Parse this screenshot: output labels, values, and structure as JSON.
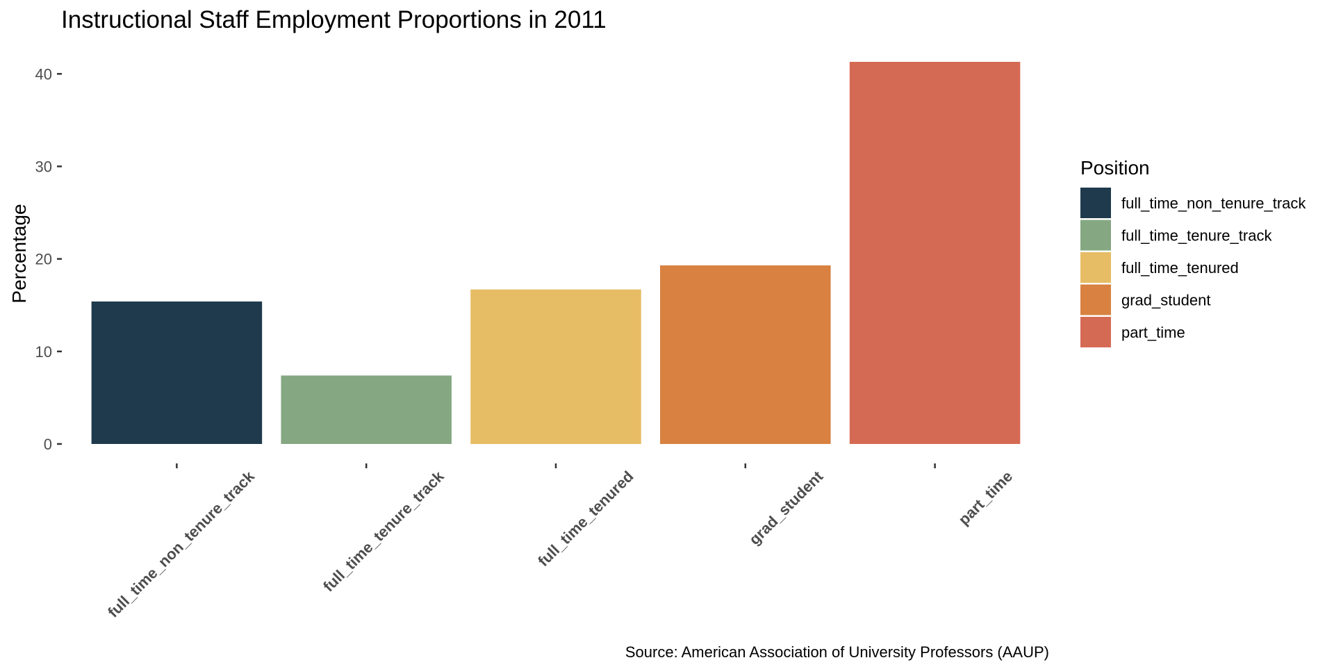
{
  "chart_data": {
    "type": "bar",
    "title": "Instructional Staff Employment Proportions in 2011",
    "xlabel": "",
    "ylabel": "Percentage",
    "categories": [
      "full_time_non_tenure_track",
      "full_time_tenure_track",
      "full_time_tenured",
      "grad_student",
      "part_time"
    ],
    "values": [
      15.4,
      7.4,
      16.7,
      19.3,
      41.3
    ],
    "colors": [
      "#1f3a4d",
      "#85a883",
      "#e6bc65",
      "#d88141",
      "#d56a54"
    ],
    "ylim": [
      0,
      41.3
    ],
    "yticks": [
      0,
      10,
      20,
      30,
      40
    ],
    "grid": false,
    "legend": {
      "title": "Position",
      "placement": "right",
      "entries": [
        "full_time_non_tenure_track",
        "full_time_tenure_track",
        "full_time_tenured",
        "grad_student",
        "part_time"
      ]
    },
    "caption": "Source: American Association of University Professors (AAUP)"
  }
}
